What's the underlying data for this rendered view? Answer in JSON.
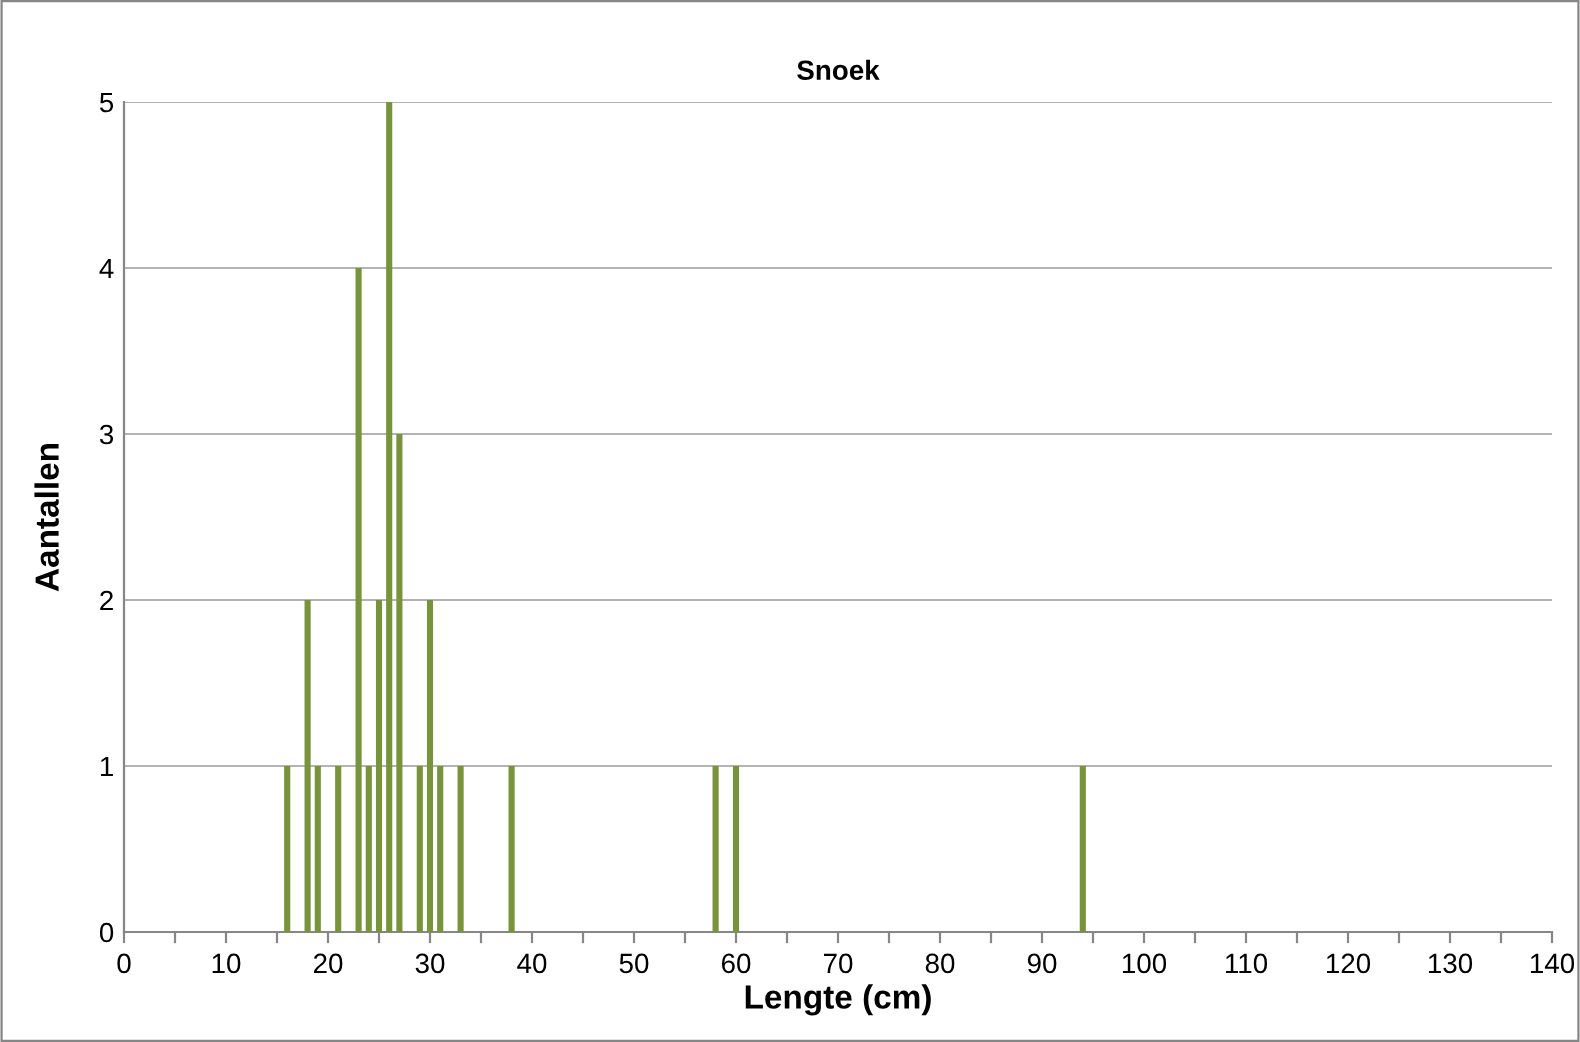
{
  "chart_data": {
    "type": "bar",
    "title": "Snoek",
    "xlabel": "Lengte (cm)",
    "ylabel": "Aantallen",
    "x": [
      16,
      18,
      19,
      21,
      23,
      24,
      25,
      26,
      27,
      29,
      30,
      31,
      33,
      38,
      58,
      60,
      94
    ],
    "values": [
      1,
      2,
      1,
      1,
      4,
      1,
      2,
      5,
      3,
      1,
      2,
      1,
      1,
      1,
      1,
      1,
      1
    ],
    "color": "#77933c",
    "xlim": [
      0,
      140
    ],
    "xticks": [
      0,
      {
        "value": 5,
        "label": null
      },
      10,
      {
        "value": 15,
        "label": null
      },
      20,
      {
        "value": 25,
        "label": null
      },
      30,
      {
        "value": 35,
        "label": null
      },
      40,
      {
        "value": 45,
        "label": null
      },
      50,
      {
        "value": 55,
        "label": null
      },
      60,
      {
        "value": 65,
        "label": null
      },
      70,
      {
        "value": 75,
        "label": null
      },
      80,
      {
        "value": 85,
        "label": null
      },
      90,
      {
        "value": 95,
        "label": null
      },
      100,
      {
        "value": 105,
        "label": null
      },
      110,
      {
        "value": 115,
        "label": null
      },
      120,
      {
        "value": 125,
        "label": null
      },
      130,
      {
        "value": 135,
        "label": null
      },
      140
    ],
    "ylim": [
      0,
      5
    ],
    "yticks": [
      0,
      1,
      2,
      3,
      4,
      5
    ],
    "grid": "y"
  }
}
